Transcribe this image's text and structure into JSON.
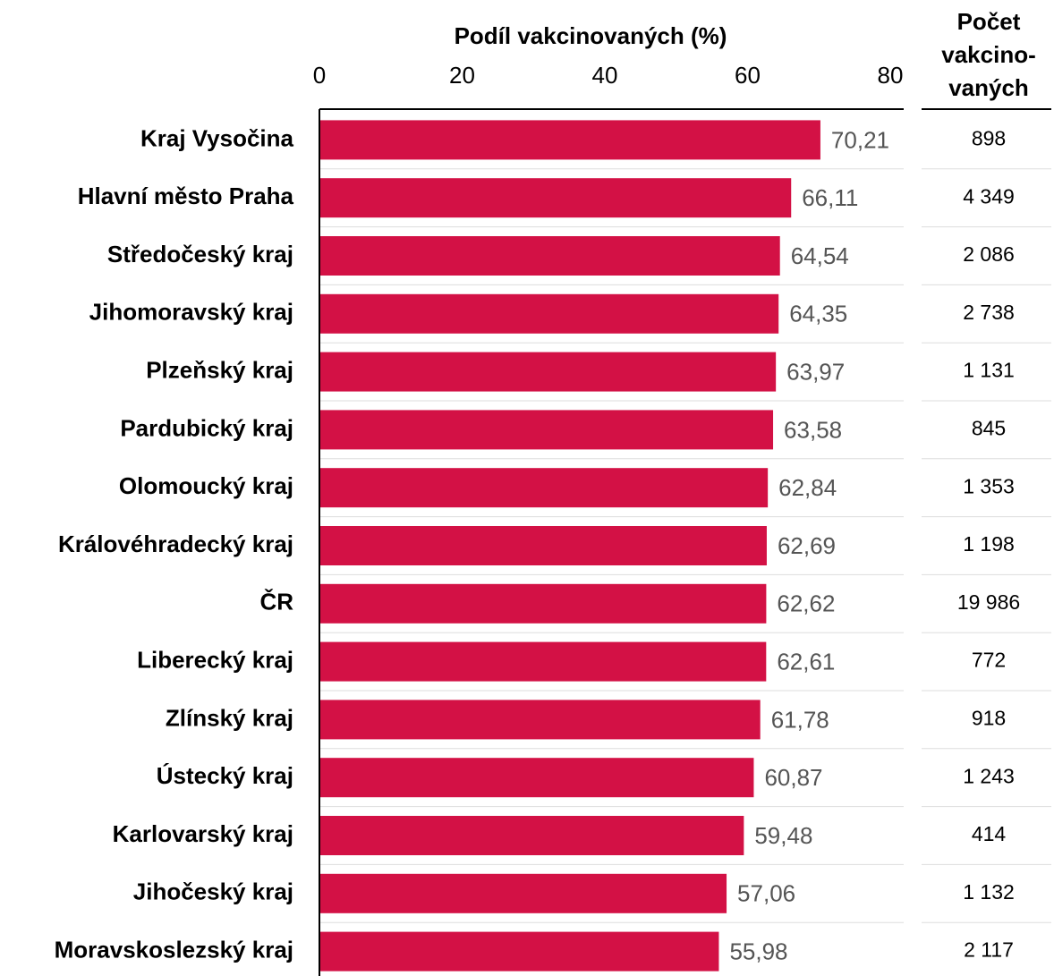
{
  "chart_data": {
    "type": "bar",
    "orientation": "horizontal",
    "x_label": "Podíl vakcinovaných (%)",
    "categories": [
      "Kraj Vysočina",
      "Hlavní město Praha",
      "Středočeský kraj",
      "Jihomoravský kraj",
      "Plzeňský kraj",
      "Pardubický kraj",
      "Olomoucký kraj",
      "Královéhradecký kraj",
      "ČR",
      "Liberecký kraj",
      "Zlínský kraj",
      "Ústecký kraj",
      "Karlovarský kraj",
      "Jihočeský kraj",
      "Moravskoslezský kraj"
    ],
    "values": [
      70.21,
      66.11,
      64.54,
      64.35,
      63.97,
      63.58,
      62.84,
      62.69,
      62.62,
      62.61,
      61.78,
      60.87,
      59.48,
      57.06,
      55.98
    ],
    "value_labels": [
      "70,21",
      "66,11",
      "64,54",
      "64,35",
      "63,97",
      "63,58",
      "62,84",
      "62,69",
      "62,62",
      "62,61",
      "61,78",
      "60,87",
      "59,48",
      "57,06",
      "55,98"
    ],
    "color": "#d31145",
    "xlim": [
      0,
      80
    ],
    "xticks": [
      0,
      20,
      40,
      60,
      80
    ],
    "table_header": [
      "Počet",
      "vakcino-",
      "vaných"
    ],
    "table_values": [
      "898",
      "4 349",
      "2 086",
      "2 738",
      "1 131",
      "845",
      "1 353",
      "1 198",
      "19 986",
      "772",
      "918",
      "1 243",
      "414",
      "1 132",
      "2 117"
    ]
  }
}
